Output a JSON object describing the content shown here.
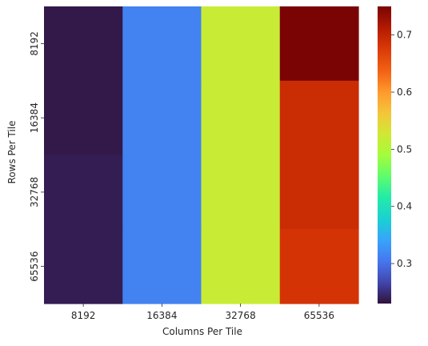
{
  "chart_data": {
    "type": "heatmap",
    "xlabel": "Columns Per Tile",
    "ylabel": "Rows Per Tile",
    "x_categories": [
      "8192",
      "16384",
      "32768",
      "65536"
    ],
    "y_categories": [
      "8192",
      "16384",
      "32768",
      "65536"
    ],
    "values": [
      [
        0.235,
        0.315,
        0.52,
        0.75
      ],
      [
        0.235,
        0.315,
        0.52,
        0.69
      ],
      [
        0.238,
        0.315,
        0.52,
        0.69
      ],
      [
        0.238,
        0.315,
        0.52,
        0.68
      ]
    ],
    "colorbar": {
      "min": 0.23,
      "max": 0.75,
      "ticks": [
        "0.3",
        "0.4",
        "0.5",
        "0.6",
        "0.7"
      ],
      "colormap": "turbo"
    },
    "colors": {
      "text": "#262626",
      "axis": "#262626",
      "background": "#ffffff"
    }
  }
}
